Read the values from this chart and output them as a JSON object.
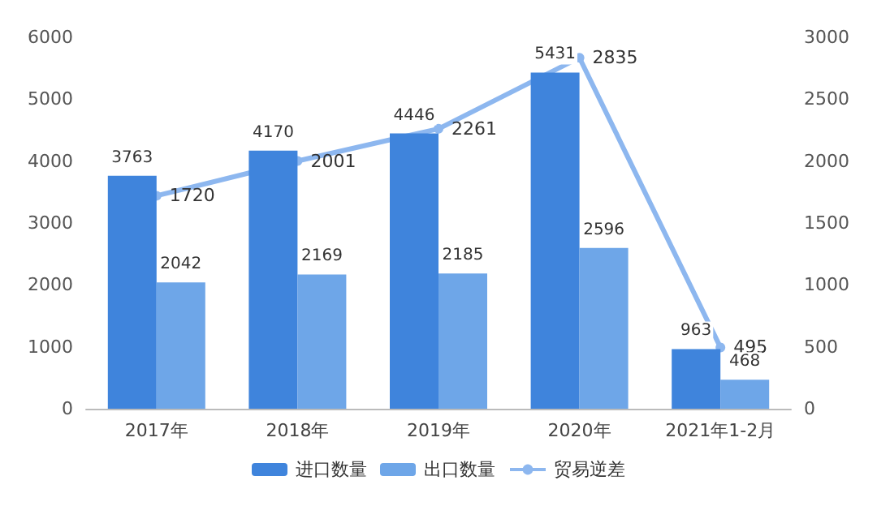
{
  "chart_data": {
    "type": "bar",
    "categories": [
      "2017年",
      "2018年",
      "2019年",
      "2020年",
      "2021年1-2月"
    ],
    "series": [
      {
        "name": "进口数量",
        "color": "#3f84dc",
        "values": [
          3763,
          4170,
          4446,
          5431,
          963
        ]
      },
      {
        "name": "出口数量",
        "color": "#6ea6e8",
        "values": [
          2042,
          2169,
          2185,
          2596,
          468
        ]
      },
      {
        "name": "贸易逆差",
        "type": "line",
        "axis": "y2",
        "color": "#8db7ef",
        "values": [
          1720,
          2001,
          2261,
          2835,
          495
        ]
      }
    ],
    "ylim": [
      0,
      6000
    ],
    "yticks": [
      0,
      1000,
      2000,
      3000,
      4000,
      5000,
      6000
    ],
    "y2lim": [
      0,
      3000
    ],
    "y2ticks": [
      0,
      500,
      1000,
      1500,
      2000,
      2500,
      3000
    ],
    "data_labels": true,
    "legend": "bottom",
    "grid": false,
    "marker": "circle"
  }
}
